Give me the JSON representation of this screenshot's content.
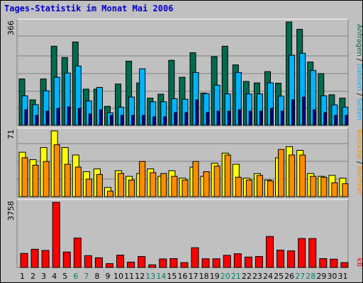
{
  "title": "Tages-Statistik im Monat Mai 2006",
  "colors": {
    "background": "#c0c0c0",
    "hits": "#006b4f",
    "files": "#00b4ff",
    "pages": "#00008b",
    "visits": "#ffff00",
    "sites": "#ff8c00",
    "kbytes": "#ff0000",
    "title": "#0000cc",
    "weekend_day": "#00806b"
  },
  "legend": {
    "hits": "Anfragen",
    "files": "Dateien",
    "pages": "Seiten",
    "visits": "Besuche",
    "sites": "Rechner",
    "kbytes": "kB",
    "separator": "/"
  },
  "chart_data": {
    "type": "bar",
    "title": "Tages-Statistik im Monat Mai 2006",
    "categories": [
      "1",
      "2",
      "3",
      "4",
      "5",
      "6",
      "7",
      "8",
      "9",
      "10",
      "11",
      "12",
      "13",
      "14",
      "15",
      "16",
      "17",
      "18",
      "19",
      "20",
      "21",
      "22",
      "23",
      "24",
      "25",
      "26",
      "27",
      "28",
      "29",
      "30",
      "31"
    ],
    "weekend_days": [
      "6",
      "7",
      "13",
      "14",
      "20",
      "21",
      "27",
      "28"
    ],
    "panels": [
      {
        "ymax_label": "366",
        "ylim": [
          0,
          366
        ],
        "series": [
          {
            "name": "Anfragen",
            "color": "#006b4f",
            "values": [
              164,
              90,
              164,
              280,
              240,
              295,
              128,
              128,
              67,
              146,
              227,
              150,
              96,
              110,
              230,
              170,
              257,
              114,
              243,
              280,
              214,
              155,
              150,
              190,
              149,
              366,
              340,
              224,
              183,
              108,
              96
            ]
          },
          {
            "name": "Dateien",
            "color": "#00b4ff",
            "values": [
              104,
              73,
              122,
              170,
              185,
              210,
              86,
              134,
              44,
              64,
              100,
              200,
              83,
              83,
              94,
              92,
              187,
              112,
              142,
              111,
              187,
              111,
              111,
              150,
              103,
              248,
              255,
              194,
              104,
              72,
              64
            ]
          },
          {
            "name": "Seiten",
            "color": "#00008b",
            "values": [
              55,
              35,
              50,
              60,
              65,
              60,
              40,
              55,
              35,
              35,
              35,
              35,
              30,
              30,
              45,
              45,
              90,
              45,
              50,
              50,
              55,
              50,
              50,
              60,
              50,
              90,
              100,
              55,
              45,
              35,
              35
            ]
          }
        ]
      },
      {
        "ymax_label": "71",
        "ylim": [
          0,
          71
        ],
        "series": [
          {
            "name": "Besuche",
            "color": "#ffff00",
            "values": [
              48,
              40,
              53,
              71,
              53,
              45,
              27,
              30,
              10,
              28,
              22,
              25,
              30,
              22,
              28,
              20,
              32,
              22,
              36,
              47,
              35,
              20,
              25,
              18,
              42,
              54,
              50,
              25,
              22,
              23,
              20
            ]
          },
          {
            "name": "Rechner",
            "color": "#ff8c00",
            "values": [
              42,
              34,
              38,
              56,
              35,
              32,
              19,
              24,
              6,
              25,
              18,
              38,
              26,
              25,
              22,
              18,
              38,
              27,
              33,
              45,
              21,
              18,
              23,
              17,
              51,
              45,
              45,
              22,
              21,
              15,
              14
            ]
          }
        ]
      },
      {
        "ymax_label": "3758",
        "ylim": [
          0,
          3758
        ],
        "series": [
          {
            "name": "kB",
            "color": "#ff0000",
            "values": [
              810,
              1050,
              980,
              3758,
              890,
              1700,
              680,
              560,
              220,
              710,
              310,
              630,
              150,
              490,
              510,
              280,
              1140,
              500,
              500,
              700,
              790,
              600,
              630,
              1790,
              1000,
              960,
              1670,
              1670,
              510,
              480,
              280
            ]
          }
        ]
      }
    ]
  }
}
